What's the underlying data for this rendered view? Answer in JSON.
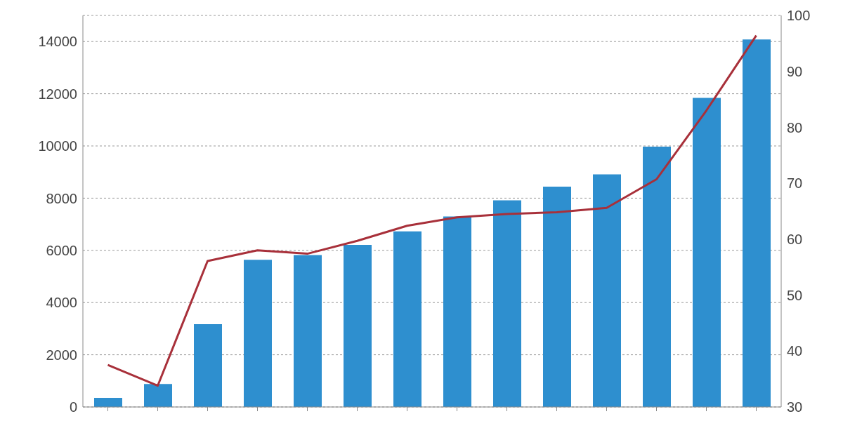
{
  "chart_data": {
    "type": "bar",
    "categories": [
      null,
      null,
      null,
      null,
      null,
      null,
      null,
      null,
      null,
      null,
      null,
      null,
      null,
      null
    ],
    "series": [
      {
        "color": "#2e8fcf",
        "values": [
          350,
          880,
          3170,
          5640,
          5820,
          6210,
          6730,
          7300,
          7920,
          8440,
          8910,
          9970,
          11840,
          14080
        ]
      },
      {
        "type": "line",
        "axis": "y2",
        "color": "#a8303a",
        "values": [
          37.5,
          33.8,
          56.1,
          58,
          57.4,
          59.7,
          62.4,
          63.9,
          64.5,
          64.8,
          65.6,
          70.7,
          83,
          96.4
        ]
      }
    ],
    "ylim": [
      0,
      15000
    ],
    "yticks": [
      0,
      2000,
      4000,
      6000,
      8000,
      10000,
      12000,
      14000
    ],
    "y2lim": [
      30,
      100
    ],
    "y2ticks": [
      30,
      40,
      50,
      60,
      70,
      80,
      90,
      100
    ],
    "grid": "y",
    "marker": "none",
    "line_style": "solid"
  }
}
